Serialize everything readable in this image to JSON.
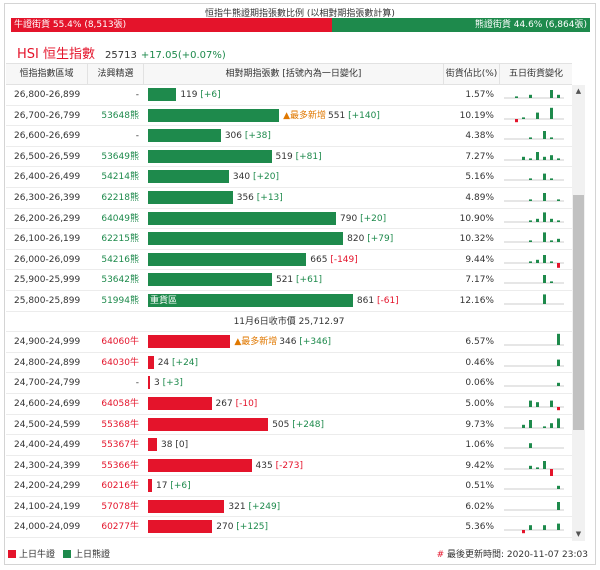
{
  "ratio": {
    "title": "恒指牛熊證期指張數比例 (以相對期指張數計算)",
    "bull_label": "牛證街貨 55.4% (8,513張)",
    "bear_label": "熊證街貨 44.6% (6,864張)",
    "bull_pct": 55.4,
    "bull_color": "#e4142b",
    "bear_color": "#1e8a4c"
  },
  "index": {
    "name": "HSI 恒生指數",
    "price": "25713",
    "change": "+17.05(+0.07%)"
  },
  "headers": {
    "range": "恒指指數區域",
    "code": "法興精選",
    "contracts": "相對期指張數 [括號內為一日變化]",
    "share": "街貨佔比(%)",
    "five_day": "五日街貨變化"
  },
  "bear_rows": [
    {
      "range": "26,800-26,899",
      "code": "-",
      "contracts": 119,
      "value": "119",
      "delta": "[+6]",
      "delta_type": "g",
      "share": "1.57%",
      "most": "",
      "spark": [
        0,
        1,
        0,
        2,
        0,
        0,
        5,
        2
      ]
    },
    {
      "range": "26,700-26,799",
      "code": "53648熊",
      "contracts": 551,
      "value": "551",
      "delta": "[+140]",
      "delta_type": "g",
      "share": "10.19%",
      "most": "▲最多新增",
      "spark": [
        0,
        -2,
        1,
        0,
        4,
        0,
        7,
        0
      ]
    },
    {
      "range": "26,600-26,699",
      "code": "-",
      "contracts": 306,
      "value": "306",
      "delta": "[+38]",
      "delta_type": "g",
      "share": "4.38%",
      "most": "",
      "spark": [
        0,
        0,
        0,
        1,
        0,
        5,
        1,
        0
      ]
    },
    {
      "range": "26,500-26,599",
      "code": "53649熊",
      "contracts": 519,
      "value": "519",
      "delta": "[+81]",
      "delta_type": "g",
      "share": "7.27%",
      "most": "",
      "spark": [
        0,
        0,
        2,
        1,
        5,
        2,
        3,
        1
      ]
    },
    {
      "range": "26,400-26,499",
      "code": "54214熊",
      "contracts": 340,
      "value": "340",
      "delta": "[+20]",
      "delta_type": "g",
      "share": "5.16%",
      "most": "",
      "spark": [
        0,
        0,
        0,
        1,
        0,
        4,
        1,
        0
      ]
    },
    {
      "range": "26,300-26,399",
      "code": "62218熊",
      "contracts": 356,
      "value": "356",
      "delta": "[+13]",
      "delta_type": "g",
      "share": "4.89%",
      "most": "",
      "spark": [
        0,
        0,
        0,
        1,
        0,
        5,
        0,
        1
      ]
    },
    {
      "range": "26,200-26,299",
      "code": "64049熊",
      "contracts": 790,
      "value": "790",
      "delta": "[+20]",
      "delta_type": "g",
      "share": "10.90%",
      "most": "",
      "spark": [
        0,
        0,
        0,
        1,
        2,
        6,
        2,
        1
      ]
    },
    {
      "range": "26,100-26,199",
      "code": "62215熊",
      "contracts": 820,
      "value": "820",
      "delta": "[+79]",
      "delta_type": "g",
      "share": "10.32%",
      "most": "",
      "spark": [
        0,
        0,
        0,
        1,
        0,
        6,
        1,
        2
      ]
    },
    {
      "range": "26,000-26,099",
      "code": "54216熊",
      "contracts": 665,
      "value": "665",
      "delta": "[-149]",
      "delta_type": "r",
      "share": "9.44%",
      "most": "",
      "spark": [
        0,
        0,
        0,
        1,
        2,
        5,
        1,
        -3
      ]
    },
    {
      "range": "25,900-25,999",
      "code": "53642熊",
      "contracts": 521,
      "value": "521",
      "delta": "[+61]",
      "delta_type": "g",
      "share": "7.17%",
      "most": "",
      "spark": [
        0,
        0,
        0,
        0,
        0,
        5,
        1,
        0
      ]
    },
    {
      "range": "25,800-25,899",
      "code": "51994熊",
      "contracts": 861,
      "value": "861",
      "delta": "[-61]",
      "delta_type": "r",
      "share": "12.16%",
      "most": "",
      "inbar": "重貨區",
      "spark": [
        0,
        0,
        0,
        0,
        0,
        6,
        0,
        0
      ]
    }
  ],
  "close_label": "11月6日收市價 25,712.97",
  "bull_rows": [
    {
      "range": "24,900-24,999",
      "code": "64060牛",
      "contracts": 346,
      "value": "346",
      "delta": "[+346]",
      "delta_type": "g",
      "share": "6.57%",
      "most": "▲最多新增",
      "spark": [
        0,
        0,
        0,
        0,
        0,
        0,
        0,
        7
      ]
    },
    {
      "range": "24,800-24,899",
      "code": "64030牛",
      "contracts": 24,
      "value": "24",
      "delta": "[+24]",
      "delta_type": "g",
      "share": "0.46%",
      "most": "",
      "spark": [
        0,
        0,
        0,
        0,
        0,
        0,
        0,
        4
      ]
    },
    {
      "range": "24,700-24,799",
      "code": "-",
      "contracts": 3,
      "value": "3",
      "delta": "[+3]",
      "delta_type": "g",
      "share": "0.06%",
      "most": "",
      "spark": [
        0,
        0,
        0,
        0,
        0,
        0,
        0,
        2
      ]
    },
    {
      "range": "24,600-24,699",
      "code": "64058牛",
      "contracts": 267,
      "value": "267",
      "delta": "[-10]",
      "delta_type": "r",
      "share": "5.00%",
      "most": "",
      "spark": [
        0,
        0,
        0,
        4,
        3,
        0,
        4,
        -2
      ]
    },
    {
      "range": "24,500-24,599",
      "code": "55368牛",
      "contracts": 505,
      "value": "505",
      "delta": "[+248]",
      "delta_type": "g",
      "share": "9.73%",
      "most": "",
      "spark": [
        0,
        0,
        2,
        5,
        0,
        1,
        3,
        6
      ]
    },
    {
      "range": "24,400-24,499",
      "code": "55367牛",
      "contracts": 38,
      "value": "38",
      "delta": "[0]",
      "delta_type": "n",
      "share": "1.06%",
      "most": "",
      "spark": [
        0,
        0,
        0,
        3,
        0,
        0,
        0,
        0
      ]
    },
    {
      "range": "24,300-24,399",
      "code": "55366牛",
      "contracts": 435,
      "value": "435",
      "delta": "[-273]",
      "delta_type": "r",
      "share": "9.42%",
      "most": "",
      "spark": [
        0,
        0,
        0,
        2,
        1,
        5,
        -5,
        0
      ]
    },
    {
      "range": "24,200-24,299",
      "code": "60216牛",
      "contracts": 17,
      "value": "17",
      "delta": "[+6]",
      "delta_type": "g",
      "share": "0.51%",
      "most": "",
      "spark": [
        0,
        0,
        0,
        0,
        0,
        0,
        0,
        2
      ]
    },
    {
      "range": "24,100-24,199",
      "code": "57078牛",
      "contracts": 321,
      "value": "321",
      "delta": "[+249]",
      "delta_type": "g",
      "share": "6.02%",
      "most": "",
      "spark": [
        0,
        0,
        0,
        0,
        0,
        0,
        0,
        5
      ]
    },
    {
      "range": "24,000-24,099",
      "code": "60277牛",
      "contracts": 270,
      "value": "270",
      "delta": "[+125]",
      "delta_type": "g",
      "share": "5.36%",
      "most": "",
      "spark": [
        0,
        0,
        -2,
        3,
        0,
        3,
        0,
        4
      ]
    }
  ],
  "legend": {
    "bull": "上日牛證",
    "bear": "上日熊證"
  },
  "update": {
    "hash": "#",
    "text": "最後更新時間: 2020-11-07 23:03"
  }
}
